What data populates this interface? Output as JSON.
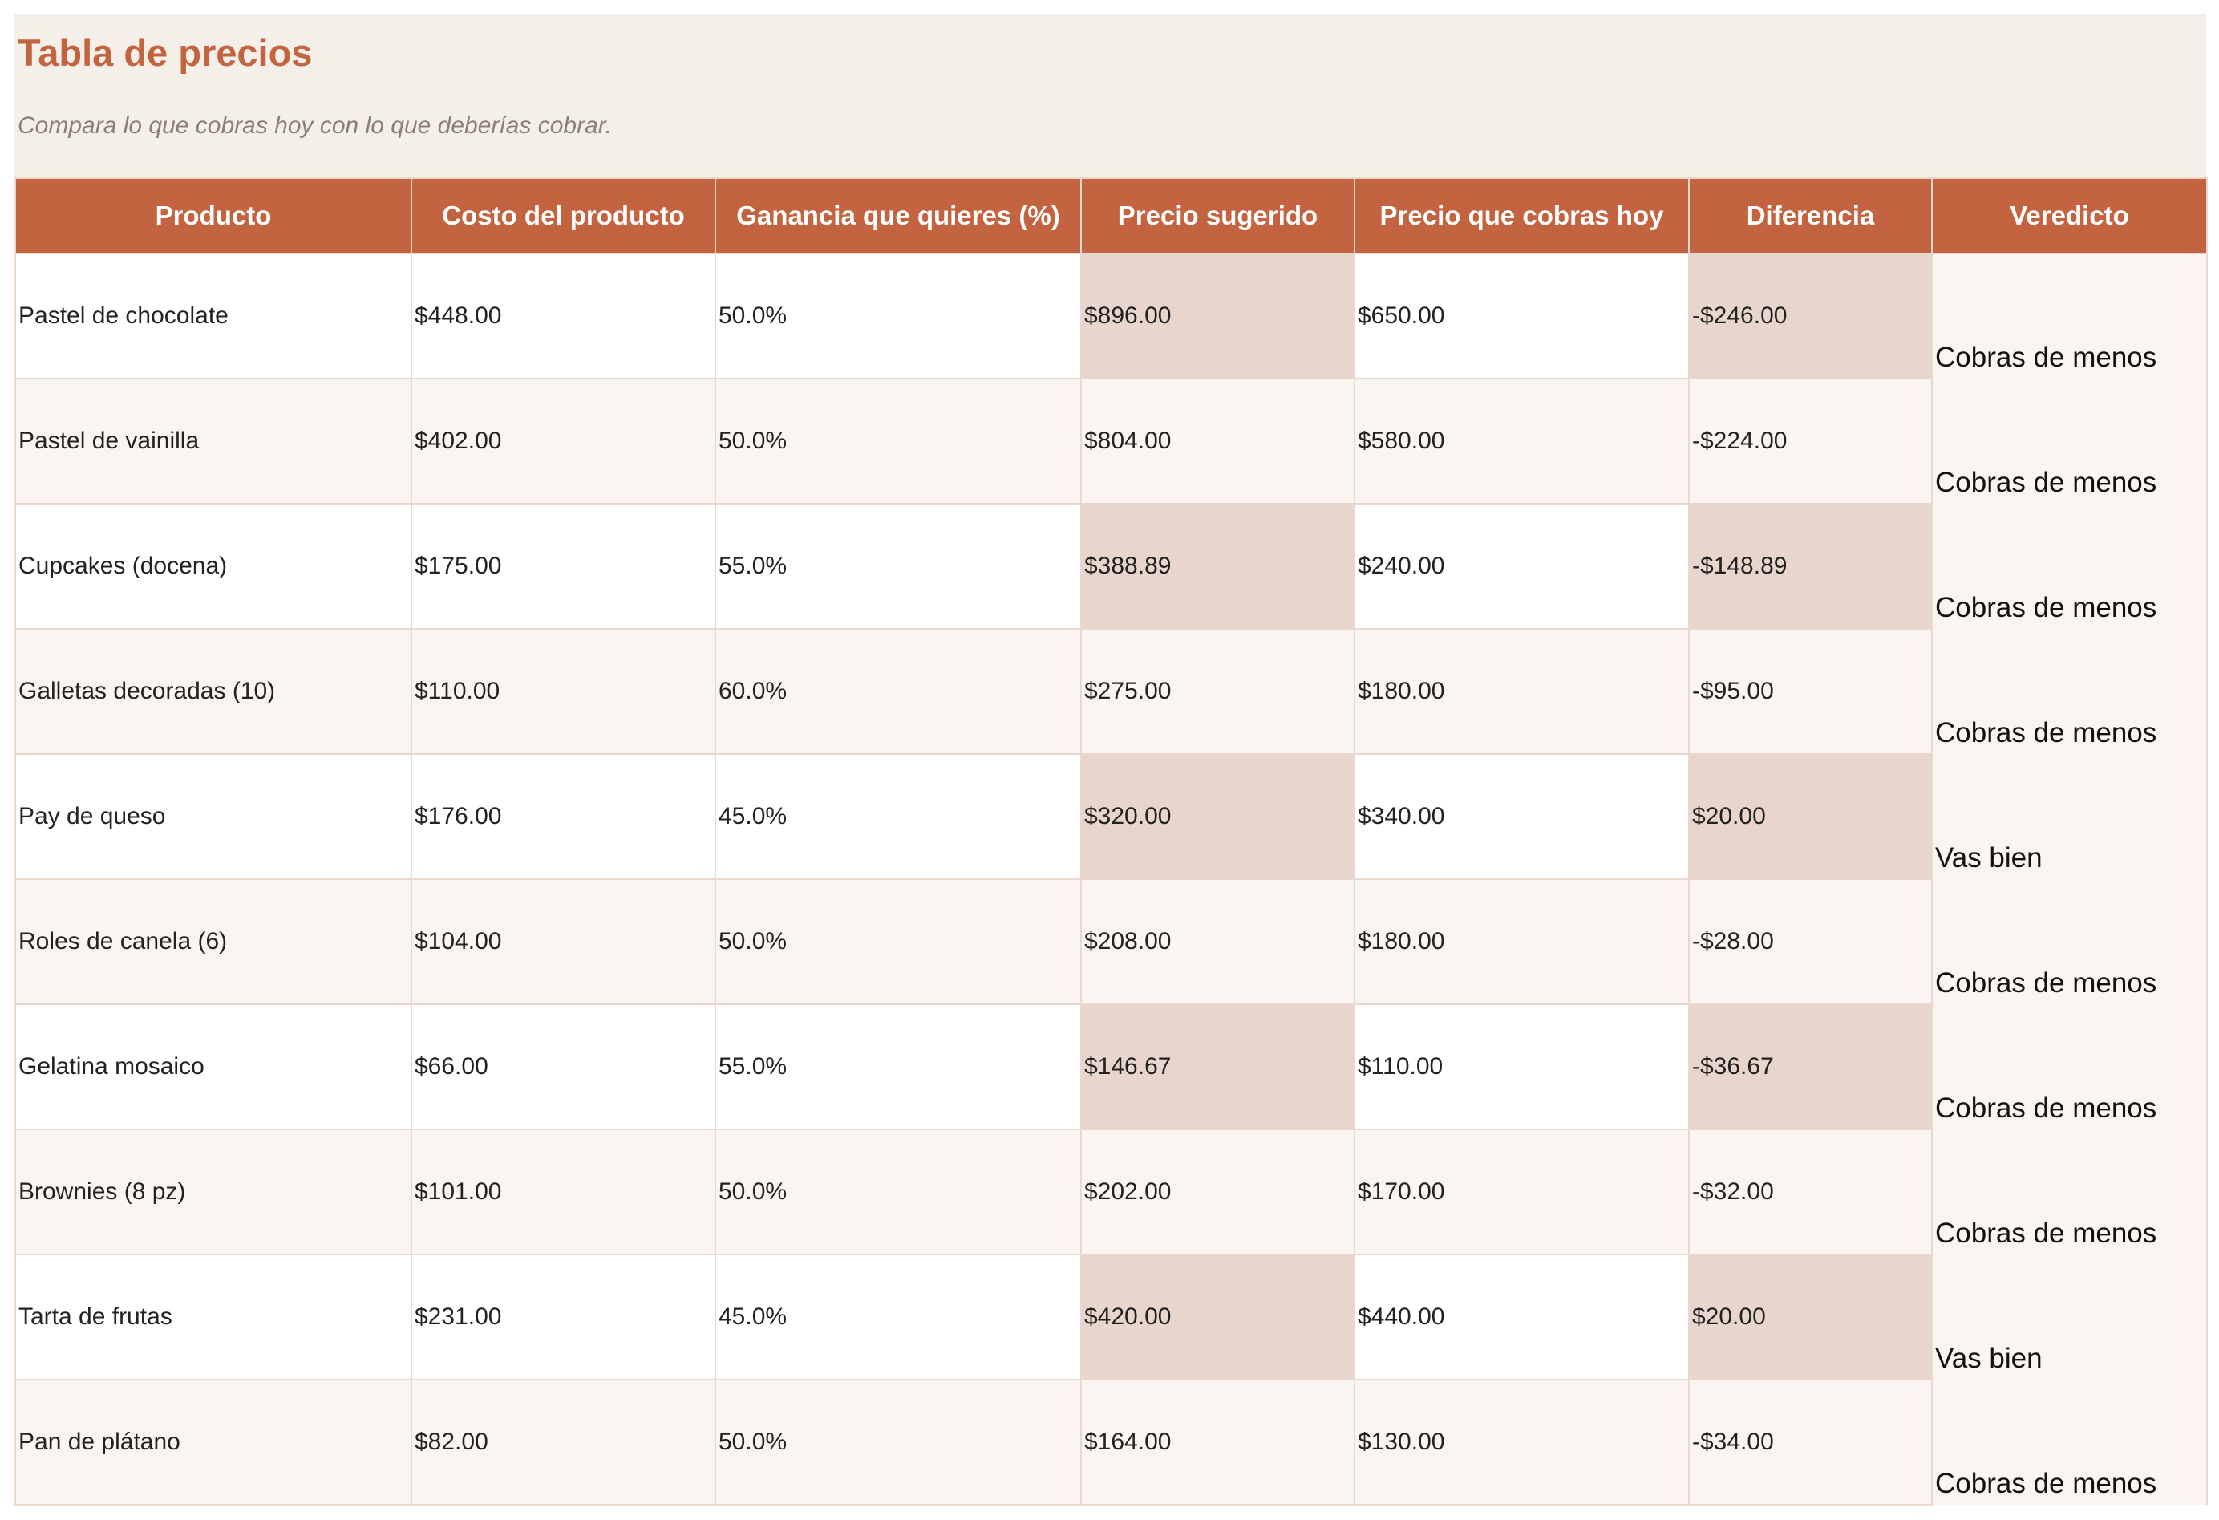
{
  "sheet": {
    "title": "Tabla de precios",
    "subtitle": "Compara lo que cobras hoy con lo que deberías cobrar."
  },
  "colors": {
    "header_bg": "#c4633f",
    "title_text": "#c4633f",
    "band_bg": "#f5efea",
    "shade_cell": "#e8d5cb",
    "negative_text": "#c0000c",
    "positive_text": "#1e7a12"
  },
  "table": {
    "headers": [
      "Producto",
      "Costo del producto",
      "Ganancia que quieres (%)",
      "Precio sugerido",
      "Precio que cobras hoy",
      "Diferencia",
      "Veredicto"
    ],
    "rows": [
      {
        "producto": "Pastel de chocolate",
        "costo": "$448.00",
        "ganancia": "50.0%",
        "sugerido": "$896.00",
        "cobras": "$650.00",
        "diferencia": "-$246.00",
        "veredicto": "Cobras de menos"
      },
      {
        "producto": "Pastel de vainilla",
        "costo": "$402.00",
        "ganancia": "50.0%",
        "sugerido": "$804.00",
        "cobras": "$580.00",
        "diferencia": "-$224.00",
        "veredicto": "Cobras de menos"
      },
      {
        "producto": "Cupcakes (docena)",
        "costo": "$175.00",
        "ganancia": "55.0%",
        "sugerido": "$388.89",
        "cobras": "$240.00",
        "diferencia": "-$148.89",
        "veredicto": "Cobras de menos"
      },
      {
        "producto": "Galletas decoradas (10)",
        "costo": "$110.00",
        "ganancia": "60.0%",
        "sugerido": "$275.00",
        "cobras": "$180.00",
        "diferencia": "-$95.00",
        "veredicto": "Cobras de menos"
      },
      {
        "producto": "Pay de queso",
        "costo": "$176.00",
        "ganancia": "45.0%",
        "sugerido": "$320.00",
        "cobras": "$340.00",
        "diferencia": "$20.00",
        "veredicto": "Vas bien"
      },
      {
        "producto": "Roles de canela (6)",
        "costo": "$104.00",
        "ganancia": "50.0%",
        "sugerido": "$208.00",
        "cobras": "$180.00",
        "diferencia": "-$28.00",
        "veredicto": "Cobras de menos"
      },
      {
        "producto": "Gelatina mosaico",
        "costo": "$66.00",
        "ganancia": "55.0%",
        "sugerido": "$146.67",
        "cobras": "$110.00",
        "diferencia": "-$36.67",
        "veredicto": "Cobras de menos"
      },
      {
        "producto": "Brownies (8 pz)",
        "costo": "$101.00",
        "ganancia": "50.0%",
        "sugerido": "$202.00",
        "cobras": "$170.00",
        "diferencia": "-$32.00",
        "veredicto": "Cobras de menos"
      },
      {
        "producto": "Tarta de frutas",
        "costo": "$231.00",
        "ganancia": "45.0%",
        "sugerido": "$420.00",
        "cobras": "$440.00",
        "diferencia": "$20.00",
        "veredicto": "Vas bien"
      },
      {
        "producto": "Pan de plátano",
        "costo": "$82.00",
        "ganancia": "50.0%",
        "sugerido": "$164.00",
        "cobras": "$130.00",
        "diferencia": "-$34.00",
        "veredicto": "Cobras de menos"
      }
    ]
  }
}
